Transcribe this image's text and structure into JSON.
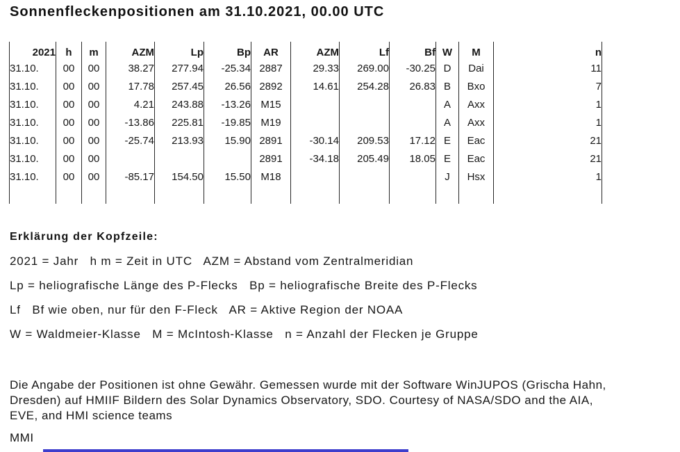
{
  "page": {
    "title": "Sonnenfleckenpositionen am 31.10.2021, 00.00 UTC"
  },
  "table": {
    "headers": [
      "2021",
      "h",
      "m",
      "AZM",
      "Lp",
      "Bp",
      "AR",
      "AZM",
      "Lf",
      "Bf",
      "W",
      "M",
      "n"
    ],
    "rows": [
      [
        "31.10.",
        "00",
        "00",
        "38.27",
        "277.94",
        "-25.34",
        "2887",
        "29.33",
        "269.00",
        "-30.25",
        "D",
        "Dai",
        "11"
      ],
      [
        "31.10.",
        "00",
        "00",
        "17.78",
        "257.45",
        "26.56",
        "2892",
        "14.61",
        "254.28",
        "26.83",
        "B",
        "Bxo",
        "7"
      ],
      [
        "31.10.",
        "00",
        "00",
        "4.21",
        "243.88",
        "-13.26",
        "M15",
        "",
        "",
        "",
        "A",
        "Axx",
        "1"
      ],
      [
        "31.10.",
        "00",
        "00",
        "-13.86",
        "225.81",
        "-19.85",
        "M19",
        "",
        "",
        "",
        "A",
        "Axx",
        "1"
      ],
      [
        "31.10.",
        "00",
        "00",
        "-25.74",
        "213.93",
        "15.90",
        "2891",
        "-30.14",
        "209.53",
        "17.12",
        "E",
        "Eac",
        "21"
      ],
      [
        "31.10.",
        "00",
        "00",
        "",
        "",
        "",
        "2891",
        "-34.18",
        "205.49",
        "18.05",
        "E",
        "Eac",
        "21"
      ],
      [
        "31.10.",
        "00",
        "00",
        "-85.17",
        "154.50",
        "15.50",
        "M18",
        "",
        "",
        "",
        "J",
        "Hsx",
        "1"
      ]
    ]
  },
  "legend": {
    "heading": "Erklärung der Kopfzeile:",
    "lines": [
      "2021 = Jahr   h m = Zeit in UTC   AZM = Abstand vom Zentralmeridian",
      "Lp = heliografische Länge des P-Flecks   Bp = heliografische Breite des P-Flecks",
      "Lf   Bf wie oben, nur für den F-Fleck   AR = Aktive Region der NOAA",
      "W = Waldmeier-Klasse   M = McIntosh-Klasse   n = Anzahl der Flecken je Gruppe"
    ]
  },
  "disclaimer": {
    "lines": [
      "Die Angabe der Positionen ist ohne Gewähr. Gemessen wurde mit der Software WinJUPOS (Grischa Hahn,",
      "Dresden) auf HMIIF Bildern des Solar Dynamics Observatory, SDO. Courtesy of NASA/SDO and the AIA,",
      "EVE, and HMI science teams"
    ]
  },
  "signature": "MMI",
  "colors": {
    "text": "#111111",
    "table_line": "#262626",
    "accent_bar": "#3d3dcd"
  }
}
